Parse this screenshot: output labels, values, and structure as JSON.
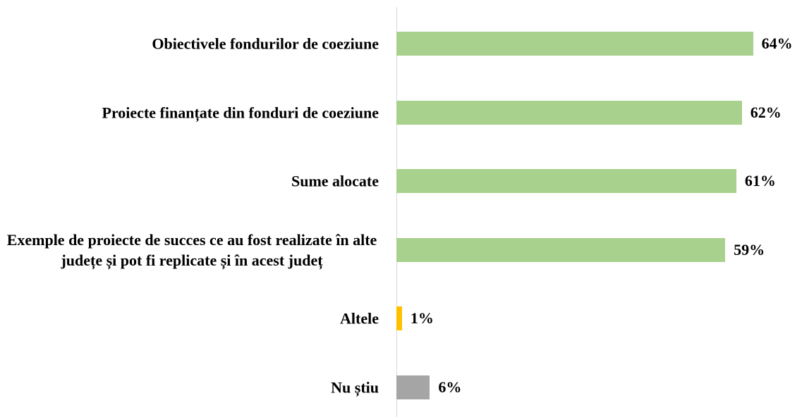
{
  "chart_data": {
    "type": "bar",
    "orientation": "horizontal",
    "categories": [
      "Obiectivele fondurilor de coeziune",
      "Proiecte finanțate din fonduri de coeziune",
      "Sume alocate",
      "Exemple de proiecte de succes ce au fost realizate în alte județe și pot fi replicate și în acest județ",
      "Altele",
      "Nu știu"
    ],
    "values": [
      64,
      62,
      61,
      59,
      1,
      6
    ],
    "value_labels": [
      "64%",
      "62%",
      "61%",
      "59%",
      "1%",
      "6%"
    ],
    "colors": [
      "#a9d18e",
      "#a9d18e",
      "#a9d18e",
      "#a9d18e",
      "#ffc000",
      "#a5a5a5"
    ]
  }
}
